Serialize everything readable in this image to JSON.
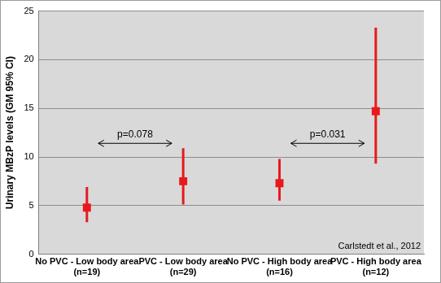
{
  "chart_data": {
    "type": "scatter",
    "y_label": "Urinary MBzP levels (GM 95% CI)",
    "categories": [
      [
        "No PVC - Low body area",
        "(n=19)"
      ],
      [
        "PVC - Low body area",
        "(n=29)"
      ],
      [
        "No PVC - High body area",
        "(n=16)"
      ],
      [
        "PVC - High body area",
        "(n=12)"
      ]
    ],
    "series": [
      {
        "name": "Urinary MBzP levels",
        "color": "#e8191c",
        "marker": "square",
        "values": [
          4.8,
          7.5,
          7.3,
          14.7
        ],
        "lower": [
          3.3,
          5.1,
          5.5,
          9.3
        ],
        "upper": [
          6.9,
          10.9,
          9.8,
          23.3
        ]
      }
    ],
    "ylim": [
      0,
      25
    ],
    "yticks": [
      0,
      5,
      10,
      15,
      20,
      25
    ],
    "grid": true,
    "annotations": [
      {
        "text": "p=0.078",
        "x": [
          0,
          1
        ],
        "y": 11.4
      },
      {
        "text": "p=0.031",
        "x": [
          2,
          3
        ],
        "y": 11.4
      },
      {
        "text": "Carlstedt et al., 2012"
      }
    ]
  }
}
